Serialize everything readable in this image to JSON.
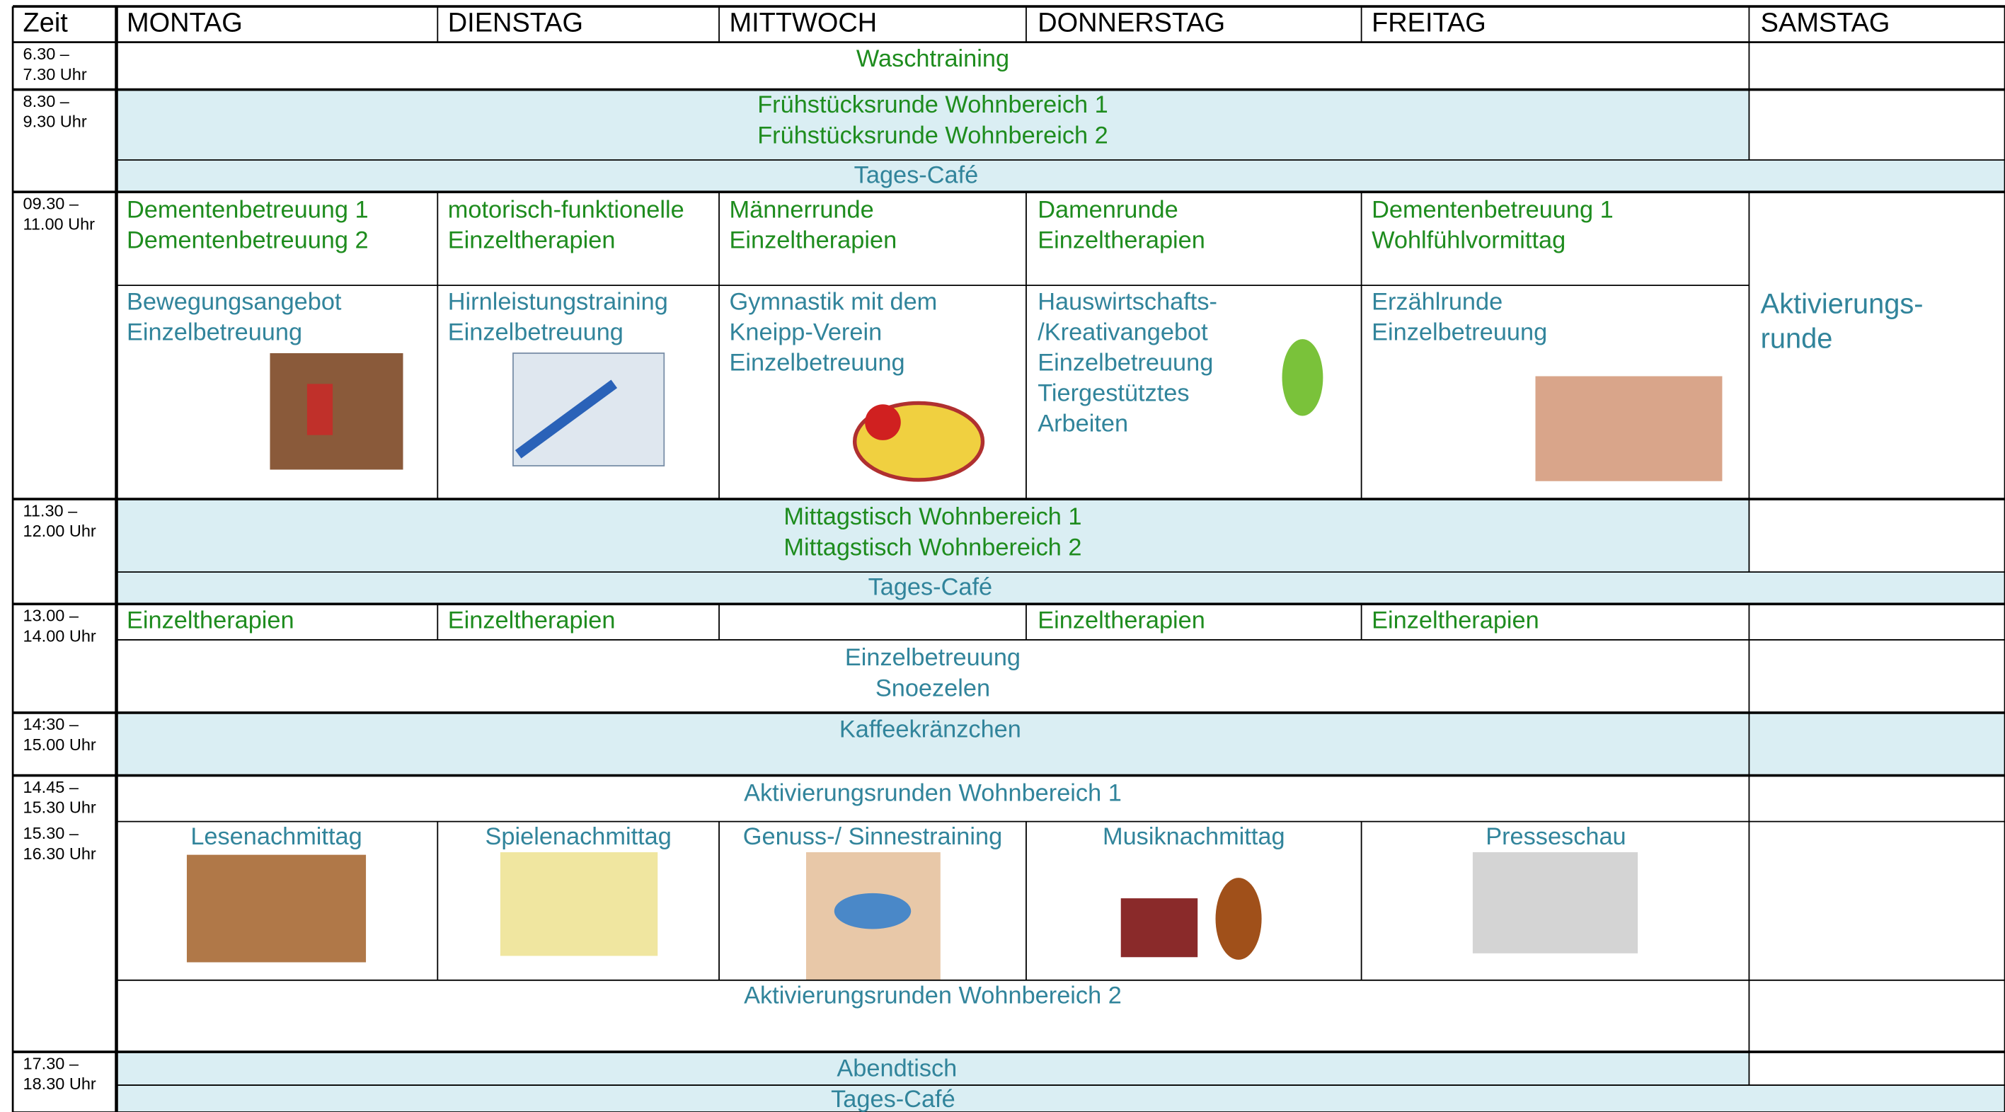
{
  "header": {
    "time": "Zeit",
    "days": [
      "MONTAG",
      "DIENSTAG",
      "MITTWOCH",
      "DONNERSTAG",
      "FREITAG",
      "SAMSTAG"
    ]
  },
  "times": [
    [
      "6.30 –",
      "7.30 Uhr"
    ],
    [
      "8.30 –",
      "9.30 Uhr"
    ],
    [
      "09.30 –",
      "11.00 Uhr"
    ],
    [
      "11.30 –",
      "12.00 Uhr"
    ],
    [
      "13.00 –",
      "14.00 Uhr"
    ],
    [
      "14:30 –",
      "15.00 Uhr"
    ],
    [
      "14.45 –",
      "15.30 Uhr"
    ],
    [
      "15.30 –",
      "16.30 Uhr"
    ],
    [
      "17.30 –",
      "18.30 Uhr"
    ]
  ],
  "activities": {
    "waschtraining": "Waschtraining",
    "fruehstueck": [
      "Frühstücksrunde Wohnbereich 1",
      "Frühstücksrunde Wohnbereich 2"
    ],
    "cafe_morning": "Tages-Café",
    "morning_1": [
      [
        "Dementenbetreuung 1",
        "Dementenbetreuung 2"
      ],
      [
        "motorisch-funktionelle",
        "Einzeltherapien"
      ],
      [
        "Männerrunde",
        "Einzeltherapien"
      ],
      [
        "Damenrunde",
        "Einzeltherapien"
      ],
      [
        "Dementenbetreuung 1",
        "Wohlfühlvormittag"
      ]
    ],
    "morning_2": [
      [
        "Bewegungsangebot",
        "Einzelbetreuung"
      ],
      [
        "Hirnleistungstraining",
        "Einzelbetreuung"
      ],
      [
        "Gymnastik mit dem",
        "Kneipp-Verein",
        "Einzelbetreuung"
      ],
      [
        "Hauswirtschafts-",
        "/Kreativangebot",
        "Einzelbetreuung",
        "Tiergestütztes",
        "Arbeiten"
      ],
      [
        "Erzählrunde",
        "Einzelbetreuung"
      ]
    ],
    "saturday": [
      "Aktivierungs-",
      "runde"
    ],
    "mittag": [
      "Mittagstisch Wohnbereich 1",
      "Mittagstisch Wohnbereich 2"
    ],
    "cafe_noon": "Tages-Café",
    "afternoon_therapies": [
      "Einzeltherapien",
      "Einzeltherapien",
      "Einzeltherapien",
      "Einzeltherapien"
    ],
    "einzelbetreuung": [
      "Einzelbetreuung",
      "Snoezelen"
    ],
    "kaffee": "Kaffeekränzchen",
    "aktivierung_1": "Aktivierungsrunden Wohnbereich 1",
    "afternoon_groups": [
      "Lesenachmittag",
      "Spielenachmittag",
      "Genuss-/ Sinnestraining",
      "Musiknachmittag",
      "Presseschau"
    ],
    "aktivierung_2": "Aktivierungsrunden Wohnbereich 2",
    "abendtisch": "Abendtisch",
    "cafe_evening": "Tages-Café"
  }
}
